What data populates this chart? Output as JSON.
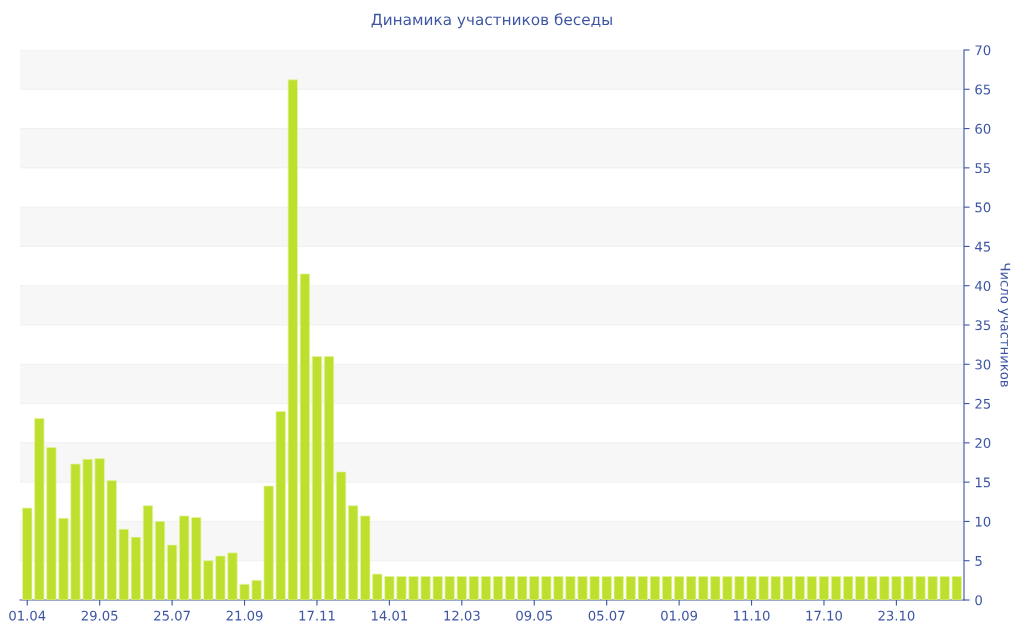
{
  "chart_data": {
    "type": "bar",
    "title": "Динамика участников беседы",
    "y2label": "Число участников",
    "categories": [
      "01.04",
      null,
      null,
      null,
      null,
      null,
      "29.05",
      null,
      null,
      null,
      null,
      null,
      "25.07",
      null,
      null,
      null,
      null,
      null,
      "21.09",
      null,
      null,
      null,
      null,
      null,
      "17.11",
      null,
      null,
      null,
      null,
      null,
      "14.01",
      null,
      null,
      null,
      null,
      null,
      "12.03",
      null,
      null,
      null,
      null,
      null,
      "09.05",
      null,
      null,
      null,
      null,
      null,
      "05.07",
      null,
      null,
      null,
      null,
      null,
      "01.09",
      null,
      null,
      null,
      null,
      null,
      "11.10",
      null,
      null,
      null,
      null,
      null,
      "17.10",
      null,
      null,
      null,
      null,
      null,
      "23.10",
      null,
      null,
      null,
      null,
      null
    ],
    "series": [
      {
        "color": "#bde02f",
        "axis": "y2",
        "values": [
          11.7,
          23.1,
          19.4,
          10.4,
          17.3,
          17.9,
          18.0,
          15.2,
          9.0,
          8.0,
          12.0,
          10.0,
          7.0,
          10.7,
          10.5,
          5.0,
          5.6,
          6.0,
          2.0,
          2.5,
          14.5,
          24.0,
          66.2,
          41.5,
          31.0,
          31.0,
          16.3,
          12.0,
          10.7,
          3.3,
          3,
          3,
          3,
          3,
          3,
          3,
          3,
          3,
          3,
          3,
          3,
          3,
          3,
          3,
          3,
          3,
          3,
          3,
          3,
          3,
          3,
          3,
          3,
          3,
          3,
          3,
          3,
          3,
          3,
          3,
          3,
          3,
          3,
          3,
          3,
          3,
          3,
          3,
          3,
          3,
          3,
          3,
          3,
          3,
          3,
          3,
          3,
          3
        ]
      }
    ],
    "y2lim": [
      0,
      70
    ],
    "y2ticks": [
      0,
      5,
      10,
      15,
      20,
      25,
      30,
      35,
      40,
      45,
      50,
      55,
      60,
      65,
      70
    ],
    "grid": "y",
    "legend": false
  }
}
